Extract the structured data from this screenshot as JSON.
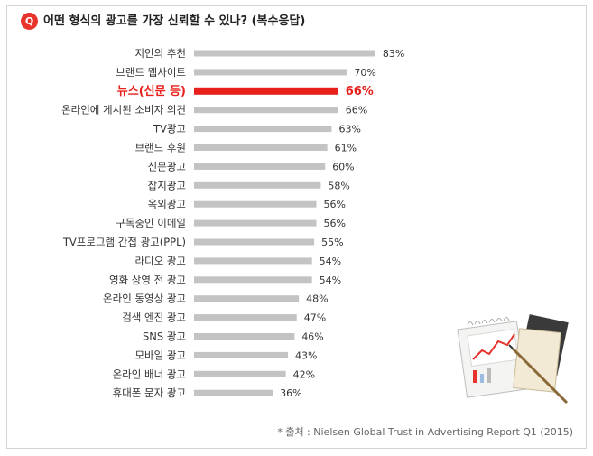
{
  "header": {
    "q_badge": "Q",
    "question": "어떤 형식의 광고를 가장 신뢰할 수 있나? (복수응답)"
  },
  "source": "* 출처 : Nielsen Global Trust in Advertising Report Q1 (2015)",
  "colors": {
    "bar": "#c3c3c3",
    "highlight": "#e8201b",
    "label": "#333333",
    "badge": "#e8322c"
  },
  "chart_data": {
    "type": "bar",
    "orientation": "horizontal",
    "categories": [
      "지인의 추천",
      "브랜드 웹사이트",
      "뉴스(신문 등)",
      "온라인에 게시된 소비자 의견",
      "TV광고",
      "브랜드 후원",
      "신문광고",
      "잡지광고",
      "옥외광고",
      "구독중인 이메일",
      "TV프로그램 간접 광고(PPL)",
      "라디오 광고",
      "영화 상영 전 광고",
      "온라인 동영상 광고",
      "검색 엔진 광고",
      "SNS 광고",
      "모바일 광고",
      "온라인 배너 광고",
      "휴대폰 문자 광고"
    ],
    "values": [
      83,
      70,
      66,
      66,
      63,
      61,
      60,
      58,
      56,
      56,
      55,
      54,
      54,
      48,
      47,
      46,
      43,
      42,
      36
    ],
    "value_labels": [
      "83%",
      "70%",
      "66%",
      "66%",
      "63%",
      "61%",
      "60%",
      "58%",
      "56%",
      "56%",
      "55%",
      "54%",
      "54%",
      "48%",
      "47%",
      "46%",
      "43%",
      "42%",
      "36%"
    ],
    "highlight_category": "뉴스(신문 등)",
    "title": "",
    "xlabel": "",
    "ylabel": "",
    "xlim": [
      0,
      100
    ],
    "grid": false,
    "legend": "none"
  }
}
